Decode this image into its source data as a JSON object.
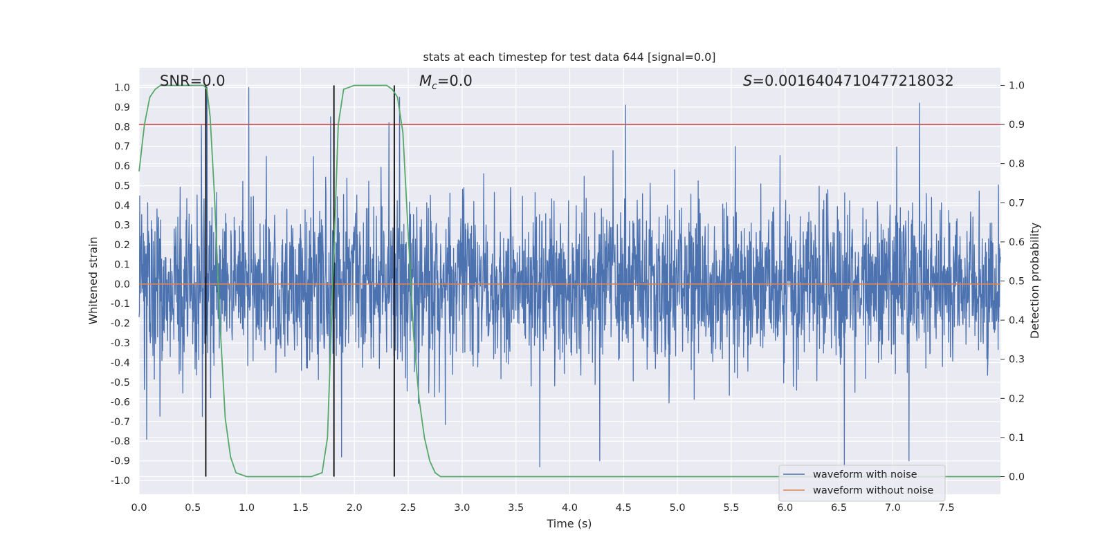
{
  "chart_data": {
    "type": "line",
    "title": "stats at each timestep for test data 644 [signal=0.0]",
    "xlabel": "Time (s)",
    "ylabel": "Whitened strain",
    "y2label": "Detection probability",
    "xlim": [
      0.0,
      8.0
    ],
    "ylim": [
      -1.07,
      1.1
    ],
    "y2lim": [
      -0.045,
      1.045
    ],
    "x_ticks": [
      "0.0",
      "0.5",
      "1.0",
      "1.5",
      "2.0",
      "2.5",
      "3.0",
      "3.5",
      "4.0",
      "4.5",
      "5.0",
      "5.5",
      "6.0",
      "6.5",
      "7.0",
      "7.5"
    ],
    "y_ticks": [
      "1.0",
      "0.9",
      "0.8",
      "0.7",
      "0.6",
      "0.5",
      "0.4",
      "0.3",
      "0.2",
      "0.1",
      "0.0",
      "-0.1",
      "-0.2",
      "-0.3",
      "-0.4",
      "-0.5",
      "-0.6",
      "-0.7",
      "-0.8",
      "-0.9",
      "-1.0"
    ],
    "y2_ticks": [
      "1.0",
      "0.9",
      "0.8",
      "0.7",
      "0.6",
      "0.5",
      "0.4",
      "0.3",
      "0.2",
      "0.1",
      "0.0"
    ],
    "grid": true,
    "legend_position": "bottom-right",
    "annotations": {
      "snr": "SNR=0.0",
      "mc_symbol": "M",
      "mc_sub": "c",
      "mc_value": "=0.0",
      "s_symbol": "S",
      "s_value": "=0.0016404710477218032"
    },
    "series": [
      {
        "name": "waveform with noise",
        "color": "#4c72b0",
        "kind": "noise",
        "x_range": [
          0.0,
          8.0
        ],
        "typical_amplitude": [
          -0.5,
          0.6
        ],
        "peak_values": [
          {
            "x": 0.58,
            "y": 0.81
          },
          {
            "x": 0.63,
            "y": 1.0
          },
          {
            "x": 1.02,
            "y": 1.0
          },
          {
            "x": 1.78,
            "y": 0.85
          },
          {
            "x": 2.32,
            "y": 0.82
          },
          {
            "x": 2.37,
            "y": 1.0
          },
          {
            "x": 2.42,
            "y": 0.95
          },
          {
            "x": 4.52,
            "y": 0.91
          },
          {
            "x": 7.25,
            "y": 0.92
          }
        ],
        "trough_values": [
          {
            "x": 0.07,
            "y": -0.79
          },
          {
            "x": 1.88,
            "y": -0.88
          },
          {
            "x": 3.72,
            "y": -0.93
          },
          {
            "x": 4.28,
            "y": -0.9
          },
          {
            "x": 6.55,
            "y": -0.93
          },
          {
            "x": 7.15,
            "y": -0.9
          }
        ]
      },
      {
        "name": "waveform without noise",
        "color": "#dd8452",
        "x": [
          0.0,
          8.0
        ],
        "y": [
          0.0,
          0.0
        ]
      },
      {
        "name": "detection probability",
        "axis": "right",
        "color": "#55a868",
        "x": [
          0.0,
          0.05,
          0.1,
          0.15,
          0.2,
          0.3,
          0.4,
          0.5,
          0.6,
          0.63,
          0.66,
          0.7,
          0.75,
          0.8,
          0.85,
          0.9,
          1.0,
          1.2,
          1.4,
          1.6,
          1.7,
          1.75,
          1.8,
          1.85,
          1.9,
          2.0,
          2.1,
          2.2,
          2.3,
          2.35,
          2.4,
          2.45,
          2.5,
          2.55,
          2.6,
          2.65,
          2.7,
          2.75,
          2.8,
          3.0,
          4.0,
          5.0,
          6.0,
          7.0,
          8.0
        ],
        "y": [
          0.78,
          0.9,
          0.97,
          0.99,
          1.0,
          1.0,
          1.0,
          1.0,
          1.0,
          0.99,
          0.92,
          0.72,
          0.4,
          0.15,
          0.05,
          0.01,
          0.0,
          0.0,
          0.0,
          0.0,
          0.01,
          0.1,
          0.5,
          0.9,
          0.99,
          1.0,
          1.0,
          1.0,
          1.0,
          0.99,
          0.97,
          0.88,
          0.62,
          0.36,
          0.2,
          0.1,
          0.04,
          0.01,
          0.0,
          0.0,
          0.0,
          0.0,
          0.0,
          0.0,
          0.0
        ]
      }
    ],
    "threshold": {
      "axis": "right",
      "y": 0.9,
      "color": "#c44e52"
    },
    "vlines": {
      "x": [
        0.62,
        1.81,
        2.37
      ],
      "y_range": [
        0.0,
        1.0
      ],
      "axis": "right",
      "color": "#000000"
    }
  }
}
